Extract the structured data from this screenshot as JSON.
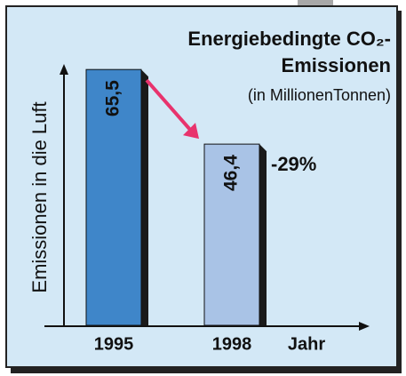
{
  "chart_data": {
    "type": "bar",
    "title": [
      "Energiebedingte CO₂-",
      "Emissionen"
    ],
    "subtitle": "(in MillionenTonnen)",
    "y_label": "Emissionen in die Luft",
    "x_label": "Jahr",
    "categories": [
      "1995",
      "1998"
    ],
    "series": [
      {
        "name": null,
        "colors": [
          "#3f86c9",
          "#a9c3e6"
        ],
        "values": [
          65.5,
          46.4
        ]
      }
    ],
    "value_labels": [
      "65,5",
      "46,4"
    ],
    "annotation": "-29%",
    "ylim": [
      0,
      66
    ],
    "grid": false
  }
}
